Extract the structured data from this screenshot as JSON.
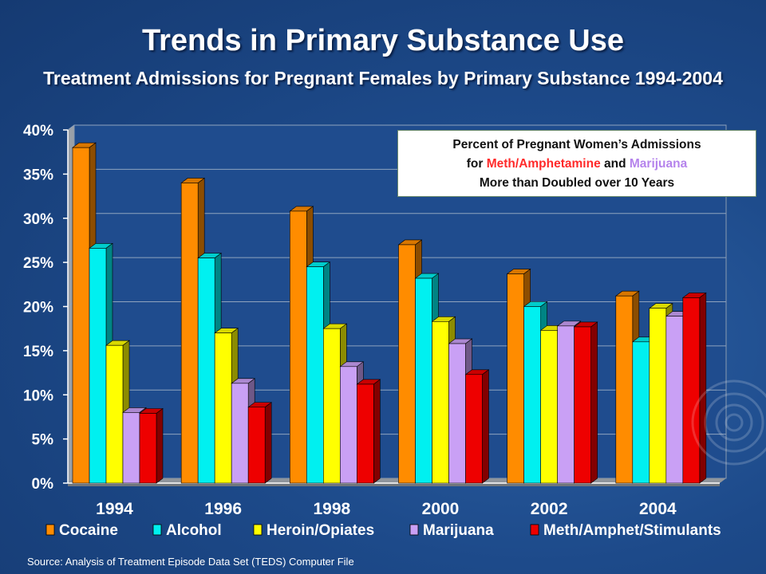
{
  "slide": {
    "title": "Trends in Primary Substance Use",
    "subtitle": "Treatment Admissions for Pregnant Females by Primary Substance 1994-2004",
    "callout": {
      "line1": "Percent of Pregnant Women’s Admissions",
      "line2_prefix": "for ",
      "line2_meth": "Meth/Amphetamine",
      "line2_mid": " and ",
      "line2_mj": "Marijuana",
      "line3": "More than Doubled over 10 Years"
    },
    "source": "Source: Analysis of Treatment Episode Data Set (TEDS) Computer File"
  },
  "chart_data": {
    "type": "bar",
    "title": "",
    "xlabel": "",
    "ylabel": "",
    "ylim": [
      0,
      40
    ],
    "yticks": [
      "0%",
      "5%",
      "10%",
      "15%",
      "20%",
      "25%",
      "30%",
      "35%",
      "40%"
    ],
    "categories": [
      "1994",
      "1996",
      "1998",
      "2000",
      "2002",
      "2004"
    ],
    "grid": true,
    "legend_position": "bottom",
    "series": [
      {
        "name": "Cocaine",
        "color": "#ff8c00",
        "values": [
          38.0,
          34.0,
          30.8,
          27.0,
          23.7,
          21.2
        ]
      },
      {
        "name": "Alcohol",
        "color": "#00f0f0",
        "values": [
          26.6,
          25.5,
          24.5,
          23.2,
          20.0,
          16.0
        ]
      },
      {
        "name": "Heroin/Opiates",
        "color": "#ffff00",
        "values": [
          15.6,
          17.0,
          17.5,
          18.3,
          17.3,
          19.8
        ]
      },
      {
        "name": "Marijuana",
        "color": "#c9a0f5",
        "values": [
          8.0,
          11.3,
          13.2,
          15.8,
          17.8,
          18.9
        ]
      },
      {
        "name": "Meth/Amphet/Stimulants",
        "color": "#ee0000",
        "values": [
          7.9,
          8.6,
          11.2,
          12.3,
          17.7,
          21.0
        ]
      }
    ]
  }
}
